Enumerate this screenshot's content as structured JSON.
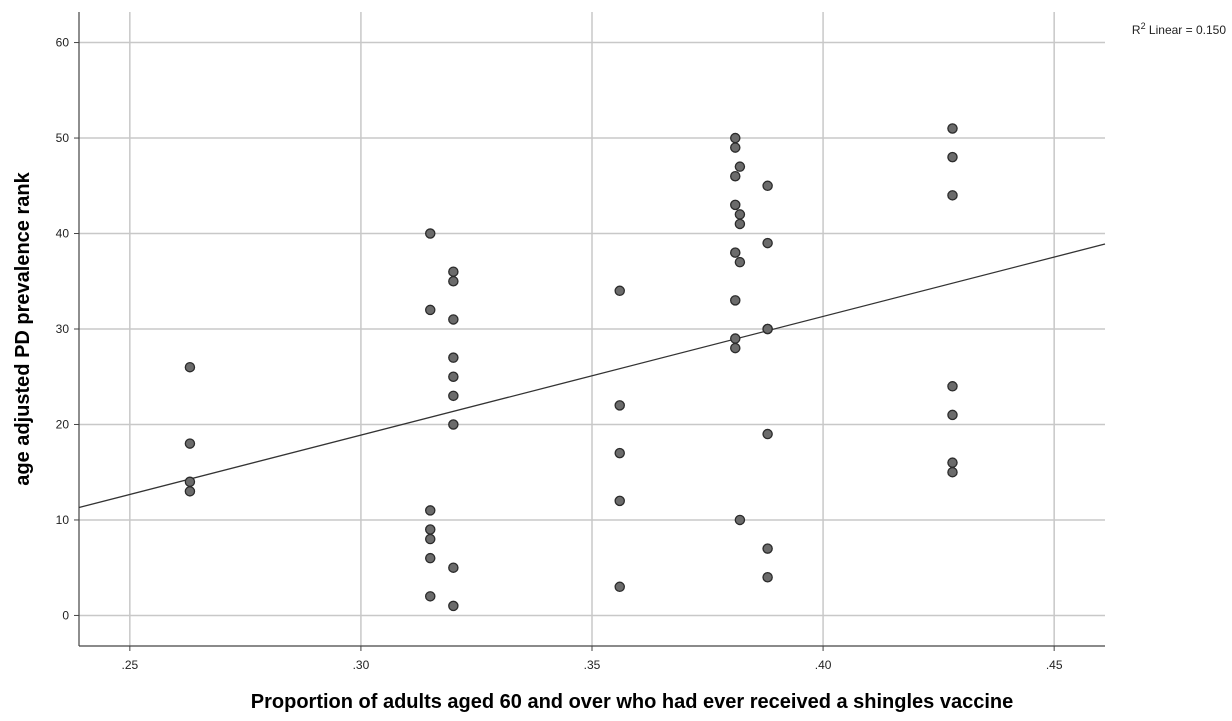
{
  "chart_data": {
    "type": "scatter",
    "xlabel": "Proportion of adults aged 60 and over who had ever received a shingles vaccine",
    "ylabel": "age adjusted PD prevalence rank",
    "xlim": [
      0.239,
      0.461
    ],
    "ylim": [
      -3.2,
      63.2
    ],
    "x_ticks": [
      0.25,
      0.3,
      0.35,
      0.4,
      0.45
    ],
    "x_tick_labels": [
      ".25",
      ".30",
      ".35",
      ".40",
      ".45"
    ],
    "y_ticks": [
      0,
      10,
      20,
      30,
      40,
      50,
      60
    ],
    "y_tick_labels": [
      "0",
      "10",
      "20",
      "30",
      "40",
      "50",
      "60"
    ],
    "grid": true,
    "fit_line": {
      "label_prefix": "R",
      "label_sup": "2",
      "label_suffix": " Linear = 0.150",
      "points": [
        [
          0.239,
          11.3
        ],
        [
          0.461,
          38.9
        ]
      ]
    },
    "points": [
      {
        "x": 0.263,
        "y": 26
      },
      {
        "x": 0.263,
        "y": 18
      },
      {
        "x": 0.263,
        "y": 14
      },
      {
        "x": 0.263,
        "y": 13
      },
      {
        "x": 0.315,
        "y": 40
      },
      {
        "x": 0.315,
        "y": 32
      },
      {
        "x": 0.315,
        "y": 11
      },
      {
        "x": 0.315,
        "y": 9
      },
      {
        "x": 0.315,
        "y": 8
      },
      {
        "x": 0.315,
        "y": 6
      },
      {
        "x": 0.315,
        "y": 2
      },
      {
        "x": 0.32,
        "y": 36
      },
      {
        "x": 0.32,
        "y": 35
      },
      {
        "x": 0.32,
        "y": 31
      },
      {
        "x": 0.32,
        "y": 27
      },
      {
        "x": 0.32,
        "y": 25
      },
      {
        "x": 0.32,
        "y": 23
      },
      {
        "x": 0.32,
        "y": 20
      },
      {
        "x": 0.32,
        "y": 5
      },
      {
        "x": 0.32,
        "y": 1
      },
      {
        "x": 0.356,
        "y": 34
      },
      {
        "x": 0.356,
        "y": 22
      },
      {
        "x": 0.356,
        "y": 17
      },
      {
        "x": 0.356,
        "y": 12
      },
      {
        "x": 0.356,
        "y": 3
      },
      {
        "x": 0.381,
        "y": 50
      },
      {
        "x": 0.381,
        "y": 49
      },
      {
        "x": 0.381,
        "y": 46
      },
      {
        "x": 0.381,
        "y": 43
      },
      {
        "x": 0.381,
        "y": 38
      },
      {
        "x": 0.381,
        "y": 33
      },
      {
        "x": 0.381,
        "y": 29
      },
      {
        "x": 0.381,
        "y": 28
      },
      {
        "x": 0.382,
        "y": 47
      },
      {
        "x": 0.382,
        "y": 42
      },
      {
        "x": 0.382,
        "y": 41
      },
      {
        "x": 0.382,
        "y": 37
      },
      {
        "x": 0.382,
        "y": 10
      },
      {
        "x": 0.388,
        "y": 45
      },
      {
        "x": 0.388,
        "y": 39
      },
      {
        "x": 0.388,
        "y": 30
      },
      {
        "x": 0.388,
        "y": 30
      },
      {
        "x": 0.388,
        "y": 19
      },
      {
        "x": 0.388,
        "y": 7
      },
      {
        "x": 0.388,
        "y": 4
      },
      {
        "x": 0.428,
        "y": 51
      },
      {
        "x": 0.428,
        "y": 48
      },
      {
        "x": 0.428,
        "y": 44
      },
      {
        "x": 0.428,
        "y": 24
      },
      {
        "x": 0.428,
        "y": 21
      },
      {
        "x": 0.428,
        "y": 16
      },
      {
        "x": 0.428,
        "y": 15
      }
    ],
    "colors": {
      "marker_fill": "#6b6b6b",
      "marker_stroke": "#2b2b2b",
      "grid": "#c8c8c8",
      "axis": "#444444",
      "fit_line": "#333333"
    }
  }
}
